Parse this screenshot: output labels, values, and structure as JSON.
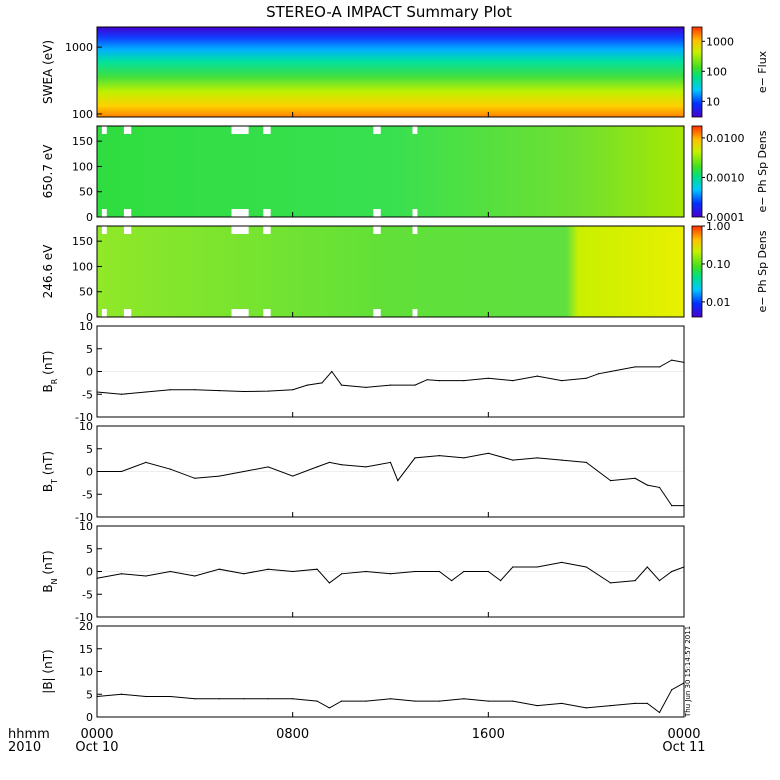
{
  "title": "STEREO-A IMPACT Summary Plot",
  "footer": {
    "hhmm": "hhmm",
    "year": "2010",
    "stamp": "Thu Jun 30 15:14:57 2011"
  },
  "x_axis": {
    "ticks": [
      {
        "hour": 0,
        "label": "0000",
        "sub": "Oct 10"
      },
      {
        "hour": 8,
        "label": "0800",
        "sub": ""
      },
      {
        "hour": 16,
        "label": "1600",
        "sub": ""
      },
      {
        "hour": 24,
        "label": "0000",
        "sub": "Oct 11"
      }
    ],
    "range_hours": [
      0,
      24
    ]
  },
  "colors": {
    "line": "#000000",
    "data_gap": "#ffffff"
  },
  "chart_data": [
    {
      "id": "swea",
      "type": "heatmap",
      "ylabel": "SWEA (eV)",
      "y_scale": "log",
      "ylim": [
        90,
        2000
      ],
      "yticks": [
        "100",
        "1000"
      ],
      "colorbar": {
        "label": "e− Flux",
        "scale": "log",
        "range": [
          3,
          3000
        ],
        "ticks": [
          "10",
          "100",
          "1000"
        ]
      },
      "energy_levels_eV": [
        100,
        200,
        400,
        800,
        1600
      ],
      "level_colorscale_fraction": [
        0.95,
        0.72,
        0.5,
        0.3,
        0.08
      ]
    },
    {
      "id": "pad650",
      "type": "heatmap",
      "ylabel": "650.7 eV",
      "ylim": [
        0,
        180
      ],
      "yticks": [
        "0",
        "50",
        "100",
        "150"
      ],
      "colorbar": {
        "label": "e− Ph Sp Dens",
        "scale": "log",
        "range": [
          0.0001,
          0.02
        ],
        "ticks": [
          "0.0001",
          "0.0010",
          "0.0100"
        ]
      },
      "typical_colorscale_fraction": 0.5,
      "gap_intervals_hours": [
        [
          0.2,
          0.4
        ],
        [
          1.1,
          1.4
        ],
        [
          5.5,
          6.2
        ],
        [
          6.8,
          7.1
        ],
        [
          11.3,
          11.6
        ],
        [
          12.9,
          13.1
        ]
      ]
    },
    {
      "id": "pad246",
      "type": "heatmap",
      "ylabel": "246.6 eV",
      "ylim": [
        0,
        180
      ],
      "yticks": [
        "0",
        "50",
        "100",
        "150"
      ],
      "colorbar": {
        "label": "e− Ph Sp Dens",
        "scale": "log",
        "range": [
          0.004,
          1.0
        ],
        "ticks": [
          "0.01",
          "0.10",
          "1.00"
        ]
      },
      "typical_colorscale_fraction": 0.55,
      "gap_intervals_hours": [
        [
          0.2,
          0.4
        ],
        [
          1.1,
          1.4
        ],
        [
          5.5,
          6.2
        ],
        [
          6.8,
          7.1
        ],
        [
          11.3,
          11.6
        ],
        [
          12.9,
          13.1
        ]
      ]
    },
    {
      "id": "br",
      "type": "line",
      "ylabel": "B",
      "ylabel_sub": "R",
      "ylabel_unit": " (nT)",
      "ylim": [
        -10,
        10
      ],
      "yticks": [
        "-10",
        "-5",
        "0",
        "5",
        "10"
      ],
      "x": [
        0,
        1,
        2,
        3,
        4,
        5,
        6,
        7,
        8,
        8.6,
        9.2,
        9.6,
        10,
        11,
        12,
        13,
        13.5,
        14,
        15,
        16,
        17,
        18,
        19,
        20,
        20.5,
        21,
        22,
        23,
        23.5,
        24
      ],
      "y": [
        -4.5,
        -5,
        -4.5,
        -4,
        -4,
        -4.2,
        -4.4,
        -4.3,
        -4,
        -3,
        -2.5,
        0,
        -3,
        -3.5,
        -3,
        -3,
        -1.8,
        -2,
        -2,
        -1.5,
        -2,
        -1,
        -2,
        -1.5,
        -0.5,
        0,
        1,
        1,
        2.5,
        2
      ]
    },
    {
      "id": "bt",
      "type": "line",
      "ylabel": "B",
      "ylabel_sub": "T",
      "ylabel_unit": " (nT)",
      "ylim": [
        -10,
        10
      ],
      "yticks": [
        "-10",
        "-5",
        "0",
        "5",
        "10"
      ],
      "x": [
        0,
        1,
        2,
        3,
        4,
        5,
        6,
        7,
        8,
        9,
        9.5,
        10,
        11,
        12,
        12.3,
        13,
        14,
        15,
        16,
        17,
        18,
        19,
        20,
        21,
        22,
        22.5,
        23,
        23.5,
        24
      ],
      "y": [
        0,
        0,
        2,
        0.5,
        -1.5,
        -1,
        0,
        1,
        -1,
        1,
        2,
        1.5,
        1,
        2,
        -2,
        3,
        3.5,
        3,
        4,
        2.5,
        3,
        2.5,
        2,
        -2,
        -1.5,
        -3,
        -3.5,
        -7.5,
        -7.5
      ]
    },
    {
      "id": "bn",
      "type": "line",
      "ylabel": "B",
      "ylabel_sub": "N",
      "ylabel_unit": " (nT)",
      "ylim": [
        -10,
        10
      ],
      "yticks": [
        "-10",
        "-5",
        "0",
        "5",
        "10"
      ],
      "x": [
        0,
        1,
        2,
        3,
        4,
        5,
        6,
        7,
        8,
        9,
        9.5,
        10,
        11,
        12,
        13,
        14,
        14.5,
        15,
        16,
        16.5,
        17,
        18,
        19,
        20,
        21,
        22,
        22.5,
        23,
        23.5,
        24
      ],
      "y": [
        -1.5,
        -0.5,
        -1,
        0,
        -1,
        0.5,
        -0.5,
        0.5,
        0,
        0.5,
        -2.5,
        -0.5,
        0,
        -0.5,
        0,
        0,
        -2,
        0,
        0,
        -2,
        1,
        1,
        2,
        1,
        -2.5,
        -2,
        1,
        -2,
        0,
        1
      ]
    },
    {
      "id": "bmag",
      "type": "line",
      "ylabel": "|B| (nT)",
      "ylim": [
        0,
        20
      ],
      "yticks": [
        "0",
        "5",
        "10",
        "15",
        "20"
      ],
      "x": [
        0,
        1,
        2,
        3,
        4,
        5,
        6,
        7,
        8,
        9,
        9.5,
        10,
        11,
        12,
        13,
        14,
        15,
        16,
        17,
        18,
        19,
        20,
        21,
        22,
        22.5,
        23,
        23.5,
        24
      ],
      "y": [
        4.5,
        5,
        4.5,
        4.5,
        4,
        4,
        4,
        4,
        4,
        3.5,
        2,
        3.5,
        3.5,
        4,
        3.5,
        3.5,
        4,
        3.5,
        3.5,
        2.5,
        3,
        2,
        2.5,
        3,
        3,
        1,
        6,
        7.5
      ]
    }
  ]
}
